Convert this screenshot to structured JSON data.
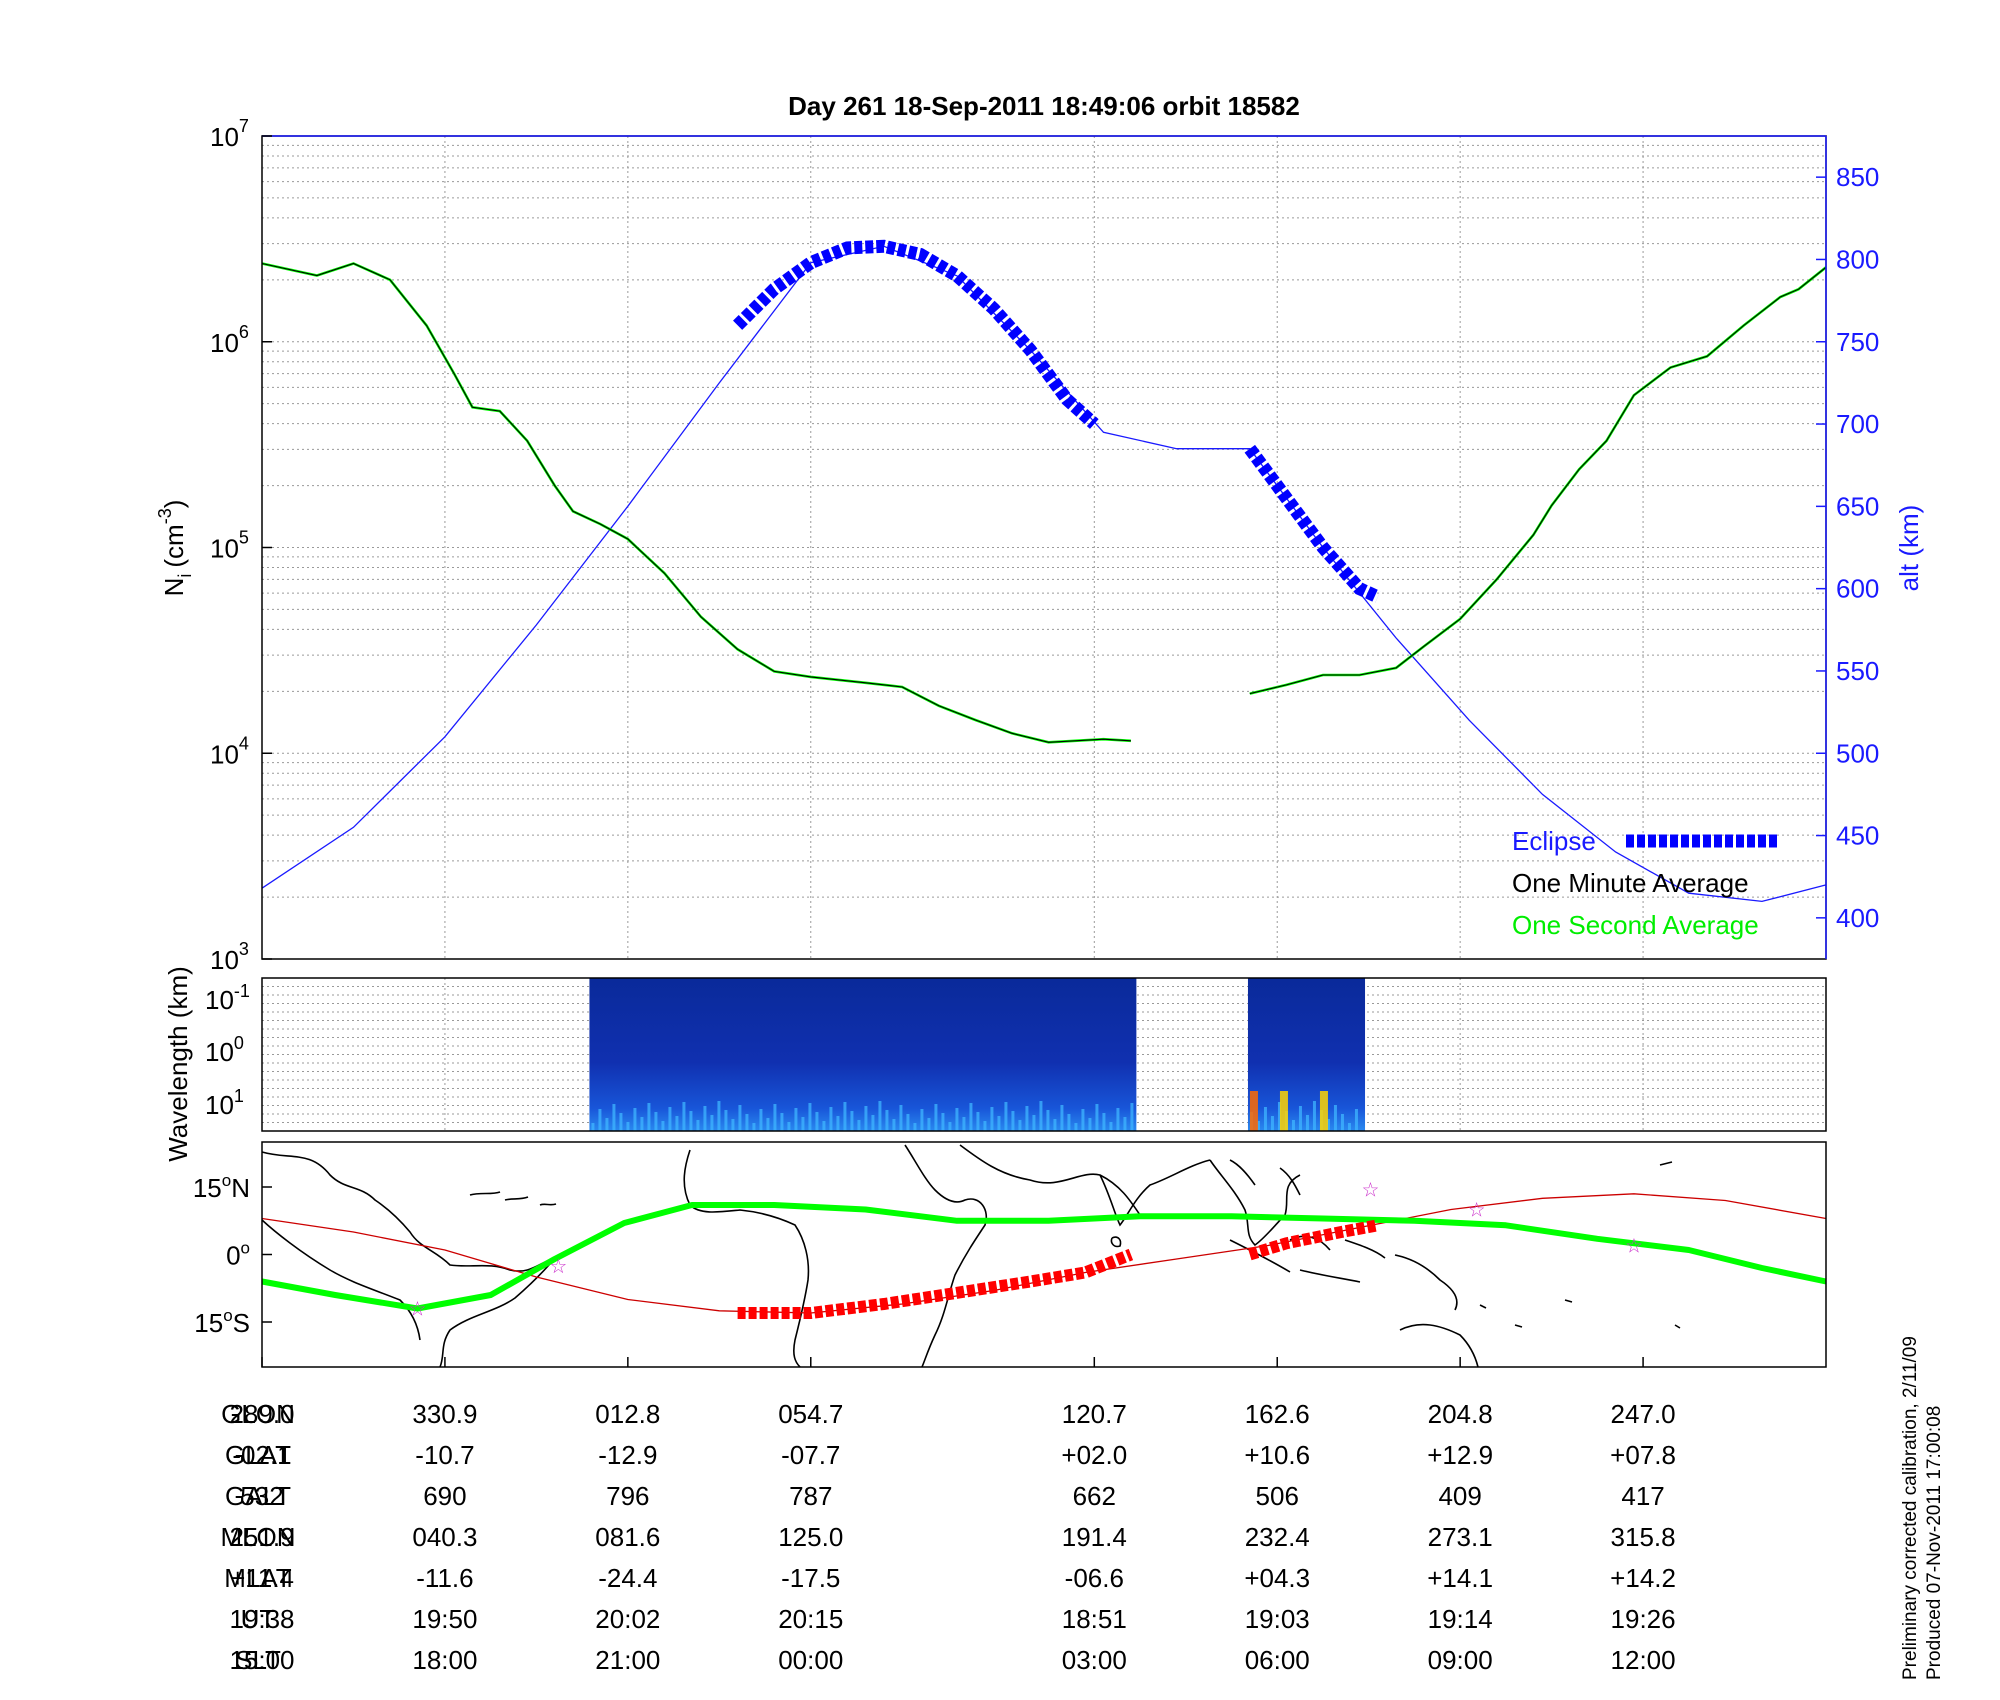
{
  "title": "Day 261  18-Sep-2011 18:49:06   orbit 18582",
  "footer": {
    "line1": "Preliminary corrected calibration, 2/11/09",
    "line2": "Produced 07-Nov-2011 17:00:08"
  },
  "colors": {
    "axis": "#000000",
    "right_axis": "#1a1aff",
    "eclipse": "#0000ff",
    "one_second": "#00ff00",
    "one_minute": "#000000",
    "track_eclipse": "#ff0000",
    "equator": "#cc0000",
    "star": "#cc33cc"
  },
  "chart_data": [
    {
      "type": "line",
      "panel": "density",
      "ylabel": "N_i (cm^-3)",
      "ylabel_main": "N",
      "ylabel_sub": "i",
      "ylabel_paren": "(cm",
      "ylabel_sup": "-3",
      "ylabel_close": ")",
      "y_scale": "log",
      "ylim": [
        1000,
        10000000
      ],
      "y_ticks": [
        {
          "base": "10",
          "exp": "3",
          "value": 1000
        },
        {
          "base": "10",
          "exp": "4",
          "value": 10000
        },
        {
          "base": "10",
          "exp": "5",
          "value": 100000
        },
        {
          "base": "10",
          "exp": "6",
          "value": 1000000
        },
        {
          "base": "10",
          "exp": "7",
          "value": 10000000
        }
      ],
      "y2label": "alt (km)",
      "y2lim": [
        375,
        875
      ],
      "y2_ticks": [
        "400",
        "450",
        "500",
        "550",
        "600",
        "650",
        "700",
        "750",
        "800",
        "850"
      ],
      "xlim": [
        0,
        8.55
      ],
      "legend_position": "bottom-right",
      "legend": [
        {
          "label": "Eclipse"
        },
        {
          "label": "One Minute Average"
        },
        {
          "label": "One Second Average"
        }
      ],
      "series": [
        {
          "name": "One Minute Average",
          "segments": [
            [
              [
                0,
                2400000
              ],
              [
                0.3,
                2100000
              ],
              [
                0.5,
                2400000
              ],
              [
                0.7,
                2000000
              ],
              [
                0.9,
                1200000
              ],
              [
                1.05,
                700000
              ],
              [
                1.15,
                480000
              ],
              [
                1.3,
                460000
              ],
              [
                1.45,
                330000
              ],
              [
                1.6,
                200000
              ],
              [
                1.7,
                150000
              ],
              [
                1.85,
                130000
              ],
              [
                2.0,
                110000
              ],
              [
                2.2,
                75000
              ],
              [
                2.4,
                46000
              ],
              [
                2.6,
                32000
              ],
              [
                2.8,
                25000
              ],
              [
                3.0,
                23500
              ],
              [
                3.3,
                22000
              ],
              [
                3.5,
                21000
              ],
              [
                3.7,
                17000
              ],
              [
                3.9,
                14500
              ],
              [
                4.1,
                12500
              ],
              [
                4.3,
                11300
              ],
              [
                4.6,
                11700
              ],
              [
                4.75,
                11500
              ]
            ],
            [
              [
                5.4,
                19500
              ],
              [
                5.6,
                21500
              ],
              [
                5.8,
                24000
              ],
              [
                6.0,
                24000
              ],
              [
                6.2,
                26000
              ],
              [
                6.35,
                33000
              ],
              [
                6.55,
                45000
              ],
              [
                6.75,
                70000
              ],
              [
                6.95,
                115000
              ],
              [
                7.05,
                160000
              ],
              [
                7.2,
                240000
              ],
              [
                7.35,
                330000
              ],
              [
                7.5,
                550000
              ],
              [
                7.7,
                750000
              ],
              [
                7.9,
                850000
              ],
              [
                8.1,
                1200000
              ],
              [
                8.3,
                1650000
              ],
              [
                8.4,
                1800000
              ],
              [
                8.55,
                2300000
              ]
            ]
          ]
        },
        {
          "name": "Eclipse",
          "segments": [
            [
              [
                2.6,
                760
              ],
              [
                2.8,
                782
              ],
              [
                3.0,
                798
              ],
              [
                3.2,
                807
              ],
              [
                3.4,
                808
              ],
              [
                3.6,
                803
              ],
              [
                3.8,
                790
              ],
              [
                4.0,
                770
              ],
              [
                4.2,
                745
              ],
              [
                4.4,
                715
              ],
              [
                4.55,
                700
              ]
            ],
            [
              [
                5.4,
                685
              ],
              [
                5.6,
                655
              ],
              [
                5.8,
                625
              ],
              [
                6.0,
                600
              ],
              [
                6.1,
                595
              ]
            ]
          ]
        },
        {
          "name": "alt",
          "segments": [
            [
              [
                0,
                418
              ],
              [
                0.5,
                455
              ],
              [
                1.0,
                510
              ],
              [
                1.5,
                578
              ],
              [
                2.0,
                650
              ],
              [
                2.5,
                725
              ],
              [
                3.0,
                798
              ],
              [
                3.4,
                808
              ],
              [
                3.8,
                790
              ],
              [
                4.2,
                745
              ],
              [
                4.6,
                695
              ],
              [
                5.0,
                685
              ],
              [
                5.4,
                685
              ],
              [
                5.8,
                625
              ],
              [
                6.2,
                570
              ],
              [
                6.6,
                520
              ],
              [
                7.0,
                475
              ],
              [
                7.4,
                440
              ],
              [
                7.8,
                415
              ],
              [
                8.2,
                410
              ],
              [
                8.55,
                420
              ]
            ]
          ]
        }
      ]
    },
    {
      "type": "heatmap",
      "panel": "wavelength",
      "ylabel": "Wavelength (km)",
      "y_ticks": [
        {
          "base": "10",
          "exp": "-1"
        },
        {
          "base": "10",
          "exp": "0"
        },
        {
          "base": "10",
          "exp": "1"
        }
      ],
      "blocks": [
        [
          1.79,
          4.78
        ],
        [
          5.39,
          6.03
        ]
      ]
    },
    {
      "type": "line",
      "panel": "map",
      "y_ticks": [
        {
          "deg": "15",
          "hemi": "N",
          "value": 15
        },
        {
          "deg": "0",
          "hemi": "",
          "value": 0
        },
        {
          "deg": "15",
          "hemi": "S",
          "value": -15
        }
      ],
      "ylim": [
        -25,
        25
      ],
      "series": [
        {
          "name": "magnetic equator",
          "points": [
            [
              0,
              8
            ],
            [
              0.5,
              5
            ],
            [
              1.0,
              1
            ],
            [
              1.5,
              -5
            ],
            [
              2.0,
              -10
            ],
            [
              2.5,
              -12.5
            ],
            [
              3.0,
              -13
            ],
            [
              3.5,
              -11
            ],
            [
              4.0,
              -8
            ],
            [
              4.5,
              -4
            ],
            [
              5.0,
              -1
            ],
            [
              5.5,
              2
            ],
            [
              6.0,
              6
            ],
            [
              6.5,
              10
            ],
            [
              7.0,
              12.5
            ],
            [
              7.5,
              13.5
            ],
            [
              8.0,
              12
            ],
            [
              8.55,
              8
            ]
          ]
        },
        {
          "name": "orbit track",
          "points": [
            [
              0,
              -6
            ],
            [
              0.4,
              -9
            ],
            [
              0.85,
              -12
            ],
            [
              1.25,
              -9
            ],
            [
              1.6,
              -1
            ],
            [
              1.98,
              7
            ],
            [
              2.35,
              11
            ],
            [
              2.8,
              11
            ],
            [
              3.3,
              10
            ],
            [
              3.8,
              7.5
            ],
            [
              4.3,
              7.5
            ],
            [
              4.8,
              8.5
            ],
            [
              5.3,
              8.5
            ],
            [
              5.8,
              8
            ],
            [
              6.3,
              7.5
            ],
            [
              6.8,
              6.5
            ],
            [
              7.3,
              3.5
            ],
            [
              7.8,
              1
            ],
            [
              8.2,
              -3
            ],
            [
              8.55,
              -6
            ]
          ]
        },
        {
          "name": "eclipse track",
          "segments": [
            [
              [
                2.6,
                -13
              ],
              [
                3.0,
                -13
              ],
              [
                3.4,
                -11
              ],
              [
                3.8,
                -8.5
              ],
              [
                4.2,
                -6
              ],
              [
                4.5,
                -4
              ],
              [
                4.75,
                0
              ]
            ],
            [
              [
                5.4,
                0
              ],
              [
                5.6,
                2.5
              ],
              [
                5.9,
                5
              ],
              [
                6.1,
                6.5
              ]
            ]
          ]
        },
        {
          "name": "stars",
          "points": [
            [
              0.85,
              -12
            ],
            [
              1.62,
              -2.5
            ],
            [
              6.06,
              14.5
            ],
            [
              6.64,
              10
            ],
            [
              7.5,
              2
            ]
          ]
        }
      ]
    }
  ],
  "table": {
    "x_positions": [
      0,
      1,
      2,
      3,
      4.55,
      5.55,
      6.55,
      7.55
    ],
    "rows": [
      {
        "label": "GLON",
        "values": [
          "289.0",
          "330.9",
          "012.8",
          "054.7",
          "120.7",
          "162.6",
          "204.8",
          "247.0"
        ]
      },
      {
        "label": "GLAT",
        "values": [
          "-02.1",
          "-10.7",
          "-12.9",
          "-07.7",
          "+02.0",
          "+10.6",
          "+12.9",
          "+07.8"
        ]
      },
      {
        "label": "GALT",
        "values": [
          "532",
          "690",
          "796",
          "787",
          "662",
          "506",
          "409",
          "417"
        ]
      },
      {
        "label": "MLON",
        "values": [
          "251.9",
          "040.3",
          "081.6",
          "125.0",
          "191.4",
          "232.4",
          "273.1",
          "315.8"
        ]
      },
      {
        "label": "MLAT",
        "values": [
          "+11.4",
          "-11.6",
          "-24.4",
          "-17.5",
          "-06.6",
          "+04.3",
          "+14.1",
          "+14.2"
        ]
      },
      {
        "label": "UT",
        "values": [
          "19:38",
          "19:50",
          "20:02",
          "20:15",
          "18:51",
          "19:03",
          "19:14",
          "19:26"
        ]
      },
      {
        "label": "SLT",
        "values": [
          "15:00",
          "18:00",
          "21:00",
          "00:00",
          "03:00",
          "06:00",
          "09:00",
          "12:00"
        ]
      }
    ]
  }
}
